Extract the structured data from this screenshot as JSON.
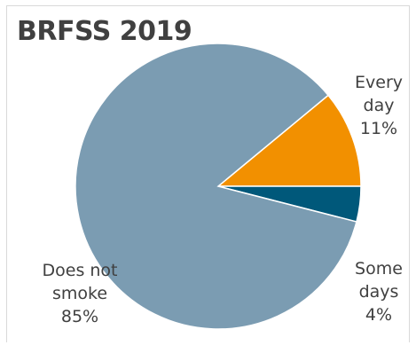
{
  "chart_data": {
    "type": "pie",
    "title": "BRFSS 2019",
    "categories": [
      "Every day",
      "Some days",
      "Does not smoke"
    ],
    "values": [
      11,
      4,
      85
    ],
    "label_lines": [
      [
        "Every",
        "day"
      ],
      [
        "Some",
        "days"
      ],
      [
        "Does not",
        "smoke"
      ]
    ],
    "percent_labels": [
      "11%",
      "4%",
      "85%"
    ],
    "colors": [
      "#f29000",
      "#00587a",
      "#7b9cb2"
    ],
    "start_angle_deg": 90,
    "direction": "clockwise-from-right"
  }
}
